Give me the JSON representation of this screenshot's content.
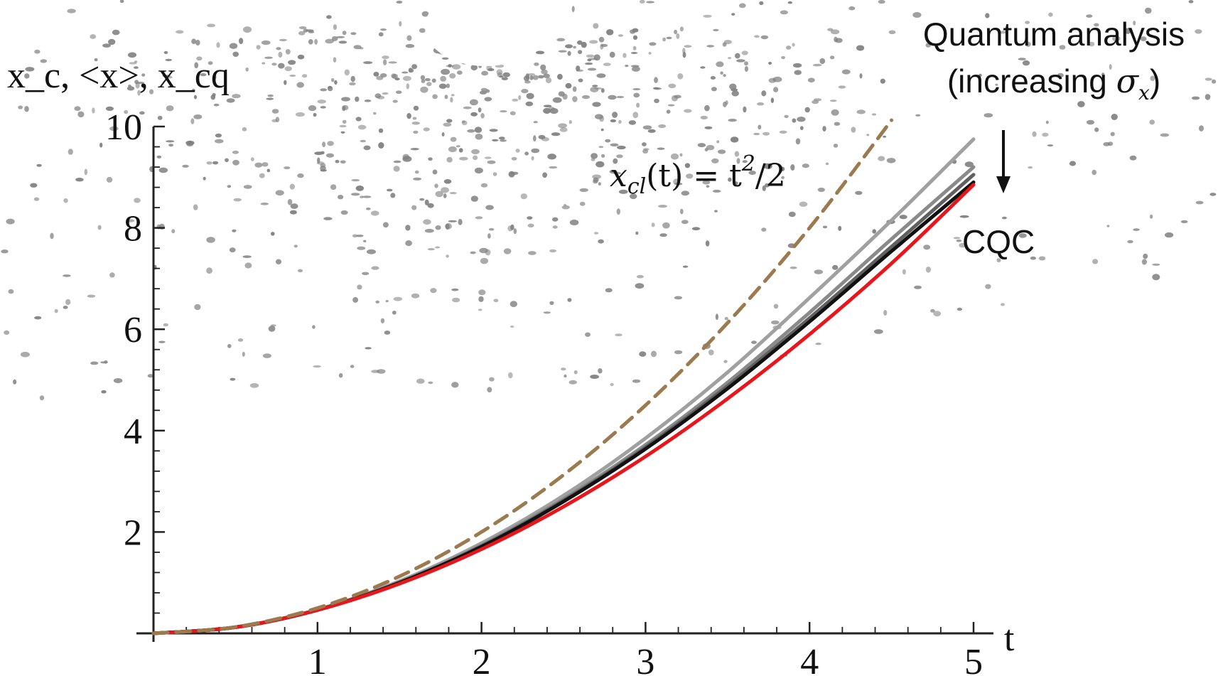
{
  "chart_data": {
    "type": "line",
    "xlabel": "t",
    "ylabel": "x_c, <x>, x_cq",
    "xlim": [
      0,
      5
    ],
    "ylim": [
      0,
      10
    ],
    "x_ticks": [
      1,
      2,
      3,
      4,
      5
    ],
    "y_ticks": [
      2,
      4,
      6,
      8,
      10
    ],
    "grid": false,
    "series": [
      {
        "role": "classical",
        "style": "dashed",
        "color": "#9b7a4f",
        "x": [
          0,
          0.5,
          1,
          1.5,
          2,
          2.5,
          3,
          3.5,
          4,
          4.5
        ],
        "y": [
          0,
          0.125,
          0.5,
          1.125,
          2.0,
          3.125,
          4.5,
          6.125,
          8.0,
          10.125
        ]
      },
      {
        "role": "quantum-1",
        "style": "solid",
        "color": "#a0a0a0",
        "x": [
          0,
          0.5,
          1,
          1.5,
          2,
          2.5,
          3,
          3.5,
          4,
          4.5,
          5
        ],
        "y": [
          0,
          0.12,
          0.47,
          1.03,
          1.78,
          2.72,
          3.85,
          5.15,
          6.62,
          8.15,
          9.75
        ]
      },
      {
        "role": "quantum-2",
        "style": "solid",
        "color": "#8a8a8a",
        "x": [
          0,
          0.5,
          1,
          1.5,
          2,
          2.5,
          3,
          3.5,
          4,
          4.5,
          5
        ],
        "y": [
          0,
          0.12,
          0.46,
          1.01,
          1.74,
          2.65,
          3.72,
          4.95,
          6.33,
          7.78,
          9.2
        ]
      },
      {
        "role": "quantum-3",
        "style": "solid",
        "color": "#606060",
        "x": [
          0,
          0.5,
          1,
          1.5,
          2,
          2.5,
          3,
          3.5,
          4,
          4.5,
          5
        ],
        "y": [
          0,
          0.12,
          0.46,
          1.0,
          1.72,
          2.62,
          3.67,
          4.88,
          6.22,
          7.63,
          9.05
        ]
      },
      {
        "role": "quantum-4",
        "style": "solid",
        "color": "#111111",
        "x": [
          0,
          0.5,
          1,
          1.5,
          2,
          2.5,
          3,
          3.5,
          4,
          4.5,
          5
        ],
        "y": [
          0,
          0.12,
          0.46,
          1.0,
          1.71,
          2.6,
          3.64,
          4.83,
          6.15,
          7.54,
          8.9
        ]
      },
      {
        "role": "cqc",
        "style": "solid",
        "color": "#e8161b",
        "x": [
          0,
          0.5,
          1,
          1.5,
          2,
          2.5,
          3,
          3.5,
          4,
          4.5,
          5
        ],
        "y": [
          0,
          0.12,
          0.46,
          0.98,
          1.66,
          2.5,
          3.49,
          4.63,
          5.9,
          7.3,
          8.85
        ]
      }
    ],
    "annotations": {
      "classical_label": "x_cl(t) = t^2/2",
      "classical_label_parts": {
        "x": "x",
        "sub": "cl",
        "mid": "(t) = t",
        "sup": "2",
        "end": "/2"
      },
      "quantum_label_line1": "Quantum analysis",
      "quantum_label_line2_text": "(increasing ",
      "quantum_label_sigma": "σ",
      "quantum_label_sigma_sub": "x",
      "quantum_label_close": ")",
      "cqc_label": "CQC"
    },
    "background_speckle_color": "#808080"
  }
}
